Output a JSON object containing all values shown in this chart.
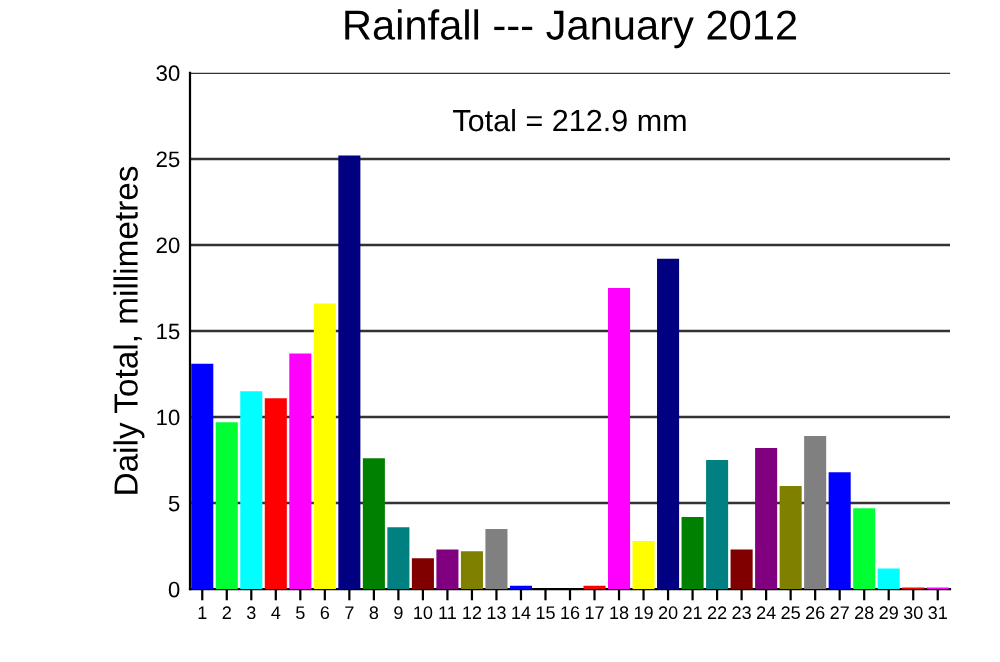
{
  "chart_data": {
    "type": "bar",
    "title": "Rainfall --- January 2012",
    "ylabel": "Daily Total, millimetres",
    "annotations": [
      "Total = 212.9 mm"
    ],
    "categories": [
      "1",
      "2",
      "3",
      "4",
      "5",
      "6",
      "7",
      "8",
      "9",
      "10",
      "11",
      "12",
      "13",
      "14",
      "15",
      "16",
      "17",
      "18",
      "19",
      "20",
      "21",
      "22",
      "23",
      "24",
      "25",
      "26",
      "27",
      "28",
      "29",
      "30",
      "31"
    ],
    "values": [
      13.1,
      9.7,
      11.5,
      11.1,
      13.7,
      16.6,
      25.2,
      7.6,
      3.6,
      1.8,
      2.3,
      2.2,
      3.5,
      0.2,
      0,
      0,
      0.2,
      17.5,
      2.8,
      19.2,
      4.2,
      7.5,
      2.3,
      8.2,
      6.0,
      8.9,
      6.8,
      4.7,
      1.2,
      0.1,
      0.1
    ],
    "colors": [
      "#0000ff",
      "#00ff33",
      "#00ffff",
      "#ff0000",
      "#ff00ff",
      "#ffff00",
      "#000080",
      "#008000",
      "#008080",
      "#800000",
      "#800080",
      "#808000",
      "#808080",
      "#0000ff",
      "#00ff33",
      "#00ffff",
      "#ff0000",
      "#ff00ff",
      "#ffff00",
      "#000080",
      "#008000",
      "#008080",
      "#800000",
      "#800080",
      "#808000",
      "#808080",
      "#0000ff",
      "#00ff33",
      "#00ffff",
      "#ff0000",
      "#ff00ff"
    ],
    "ylim": [
      0,
      30
    ],
    "yticks": [
      0,
      5,
      10,
      15,
      20,
      25,
      30
    ],
    "grid": "y",
    "legend": false
  }
}
